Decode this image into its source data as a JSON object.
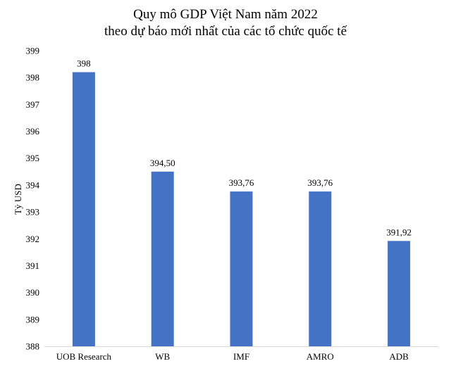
{
  "chart_data": {
    "type": "bar",
    "title": "Quy mô GDP Việt Nam năm 2022",
    "subtitle": "theo dự báo mới nhất của các tổ chức quốc tế",
    "xlabel": "",
    "ylabel": "Tỷ USD",
    "categories": [
      "UOB Research",
      "WB",
      "IMF",
      "AMRO",
      "ADB"
    ],
    "values": [
      398.2,
      394.5,
      393.76,
      393.76,
      391.92
    ],
    "data_labels": [
      "398",
      "394,50",
      "393,76",
      "393,76",
      "391,92"
    ],
    "ylim": [
      388,
      399
    ],
    "yticks": [
      "388",
      "389",
      "390",
      "391",
      "392",
      "393",
      "394",
      "395",
      "396",
      "397",
      "398",
      "399"
    ],
    "grid": false,
    "legend": "none",
    "colors": {
      "bar": "#4472C4",
      "axis": "#D9D9D9",
      "text": "#000000"
    }
  }
}
